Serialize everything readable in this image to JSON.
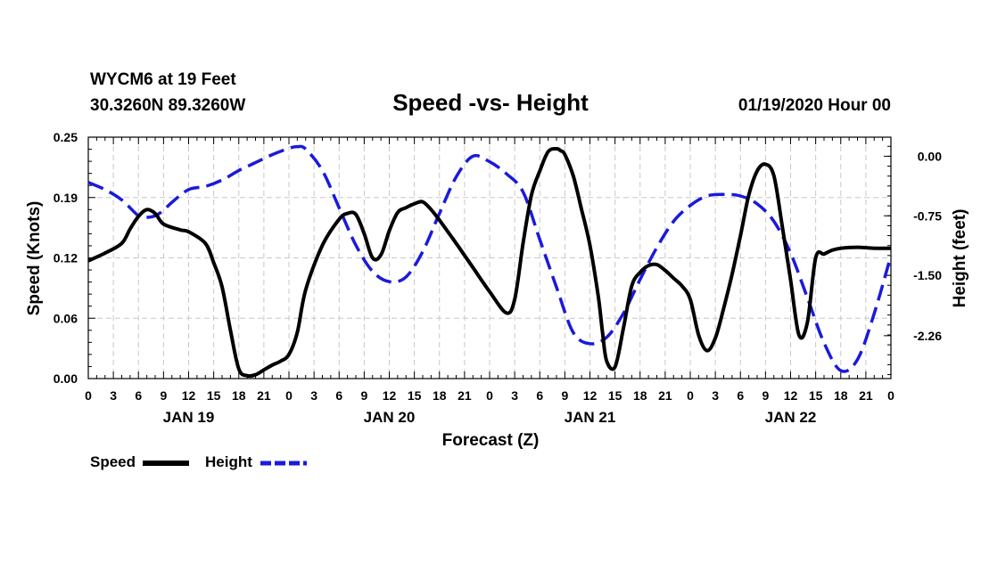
{
  "header": {
    "station": "WYCM6 at 19 Feet",
    "coords": "30.3260N 89.3260W",
    "title": "Speed -vs- Height",
    "date": "01/19/2020 Hour 00"
  },
  "legend": {
    "speed_label": "Speed",
    "height_label": "Height"
  },
  "chart_data": {
    "type": "line",
    "title": "Speed -vs- Height",
    "xlabel": "Forecast (Z)",
    "ylabel": "Speed (Knots)",
    "y2label": "Height (feet)",
    "xlim": [
      0,
      96
    ],
    "ylim": [
      0,
      0.25
    ],
    "y2lim": [
      -2.8,
      0.24
    ],
    "grid": true,
    "legend_position": "bottom-left",
    "x_tick_values": [
      0,
      3,
      6,
      9,
      12,
      15,
      18,
      21,
      24,
      27,
      30,
      33,
      36,
      39,
      42,
      45,
      48,
      51,
      54,
      57,
      60,
      63,
      66,
      69,
      72,
      75,
      78,
      81,
      84,
      87,
      90,
      93,
      96
    ],
    "x_tick_labels": [
      "0",
      "3",
      "6",
      "9",
      "12",
      "15",
      "18",
      "21",
      "0",
      "3",
      "6",
      "9",
      "12",
      "15",
      "18",
      "21",
      "0",
      "3",
      "6",
      "9",
      "12",
      "15",
      "18",
      "21",
      "0",
      "3",
      "6",
      "9",
      "12",
      "15",
      "18",
      "21",
      "0"
    ],
    "day_labels": [
      {
        "x": 12,
        "label": "JAN 19"
      },
      {
        "x": 36,
        "label": "JAN 20"
      },
      {
        "x": 60,
        "label": "JAN 21"
      },
      {
        "x": 84,
        "label": "JAN 22"
      }
    ],
    "y_ticks": [
      "0.00",
      "0.06",
      "0.12",
      "0.19",
      "0.25"
    ],
    "y_tick_values": [
      0,
      0.0625,
      0.125,
      0.1875,
      0.25
    ],
    "y2_ticks": [
      "0.00",
      "-0.75",
      "-1.50",
      "-2.26"
    ],
    "y2_tick_values": [
      0,
      -0.75,
      -1.5,
      -2.26
    ],
    "series": [
      {
        "name": "Speed",
        "axis": "left",
        "color": "#000000",
        "style": "solid",
        "x": [
          0,
          2,
          4,
          5,
          6,
          7,
          8,
          9,
          11,
          12,
          14,
          15,
          16,
          17,
          18,
          19,
          20,
          21,
          22,
          23,
          24,
          25,
          26,
          28,
          30,
          31,
          32,
          33,
          34,
          35,
          36,
          37,
          38,
          39,
          40,
          41,
          42,
          44,
          46,
          48,
          50,
          51,
          52,
          53,
          54,
          55,
          56,
          56.5,
          57,
          58,
          59,
          60,
          61,
          61.5,
          62,
          63,
          64,
          65,
          66,
          67,
          68,
          69,
          70,
          71,
          72,
          73,
          74,
          75,
          76,
          77,
          78,
          79,
          80,
          81,
          82,
          83,
          84,
          85,
          86,
          87,
          88,
          89,
          90,
          92,
          94,
          96
        ],
        "values": [
          0.122,
          0.13,
          0.14,
          0.155,
          0.168,
          0.175,
          0.171,
          0.16,
          0.154,
          0.152,
          0.14,
          0.12,
          0.095,
          0.05,
          0.01,
          0.003,
          0.004,
          0.009,
          0.014,
          0.018,
          0.025,
          0.048,
          0.092,
          0.138,
          0.165,
          0.171,
          0.17,
          0.15,
          0.125,
          0.128,
          0.153,
          0.172,
          0.177,
          0.181,
          0.183,
          0.175,
          0.164,
          0.14,
          0.115,
          0.09,
          0.068,
          0.082,
          0.14,
          0.19,
          0.215,
          0.235,
          0.238,
          0.236,
          0.232,
          0.21,
          0.175,
          0.138,
          0.085,
          0.048,
          0.018,
          0.012,
          0.052,
          0.096,
          0.11,
          0.117,
          0.118,
          0.112,
          0.104,
          0.096,
          0.082,
          0.045,
          0.029,
          0.042,
          0.073,
          0.108,
          0.148,
          0.19,
          0.215,
          0.222,
          0.21,
          0.158,
          0.102,
          0.045,
          0.058,
          0.125,
          0.129,
          0.133,
          0.135,
          0.136,
          0.135,
          0.135
        ]
      },
      {
        "name": "Height",
        "axis": "right",
        "color": "#1a1adb",
        "style": "dashed",
        "x": [
          0,
          2,
          4,
          6,
          7,
          8,
          9,
          10,
          12,
          14,
          16,
          18,
          20,
          22,
          24,
          25,
          26,
          28,
          30,
          32,
          34,
          36,
          38,
          40,
          42,
          44,
          46,
          48,
          50,
          52,
          54,
          56,
          58,
          60,
          62,
          64,
          66,
          68,
          70,
          72,
          74,
          76,
          78,
          80,
          82,
          84,
          86,
          88,
          90,
          92,
          94,
          96
        ],
        "values": [
          -0.33,
          -0.42,
          -0.55,
          -0.75,
          -0.77,
          -0.75,
          -0.68,
          -0.58,
          -0.42,
          -0.38,
          -0.3,
          -0.18,
          -0.08,
          0.02,
          0.1,
          0.12,
          0.09,
          -0.18,
          -0.65,
          -1.12,
          -1.45,
          -1.58,
          -1.52,
          -1.2,
          -0.72,
          -0.26,
          0.0,
          -0.07,
          -0.22,
          -0.45,
          -1.05,
          -1.65,
          -2.22,
          -2.36,
          -2.28,
          -1.98,
          -1.55,
          -1.15,
          -0.82,
          -0.62,
          -0.5,
          -0.48,
          -0.5,
          -0.6,
          -0.82,
          -1.22,
          -1.78,
          -2.35,
          -2.7,
          -2.56,
          -1.98,
          -1.25
        ]
      }
    ]
  }
}
